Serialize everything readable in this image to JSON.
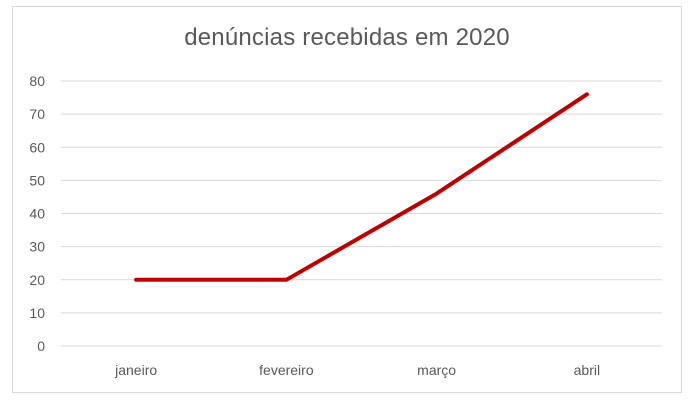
{
  "chart_data": {
    "type": "line",
    "title": "denúncias recebidas em 2020",
    "categories": [
      "janeiro",
      "fevereiro",
      "março",
      "abril"
    ],
    "series": [
      {
        "values": [
          20,
          20,
          46,
          76
        ],
        "color": "#c00000"
      }
    ],
    "ylim": [
      0,
      80
    ],
    "yticks": [
      0,
      10,
      20,
      30,
      40,
      50,
      60,
      70,
      80
    ],
    "grid": true,
    "legend": "none"
  }
}
